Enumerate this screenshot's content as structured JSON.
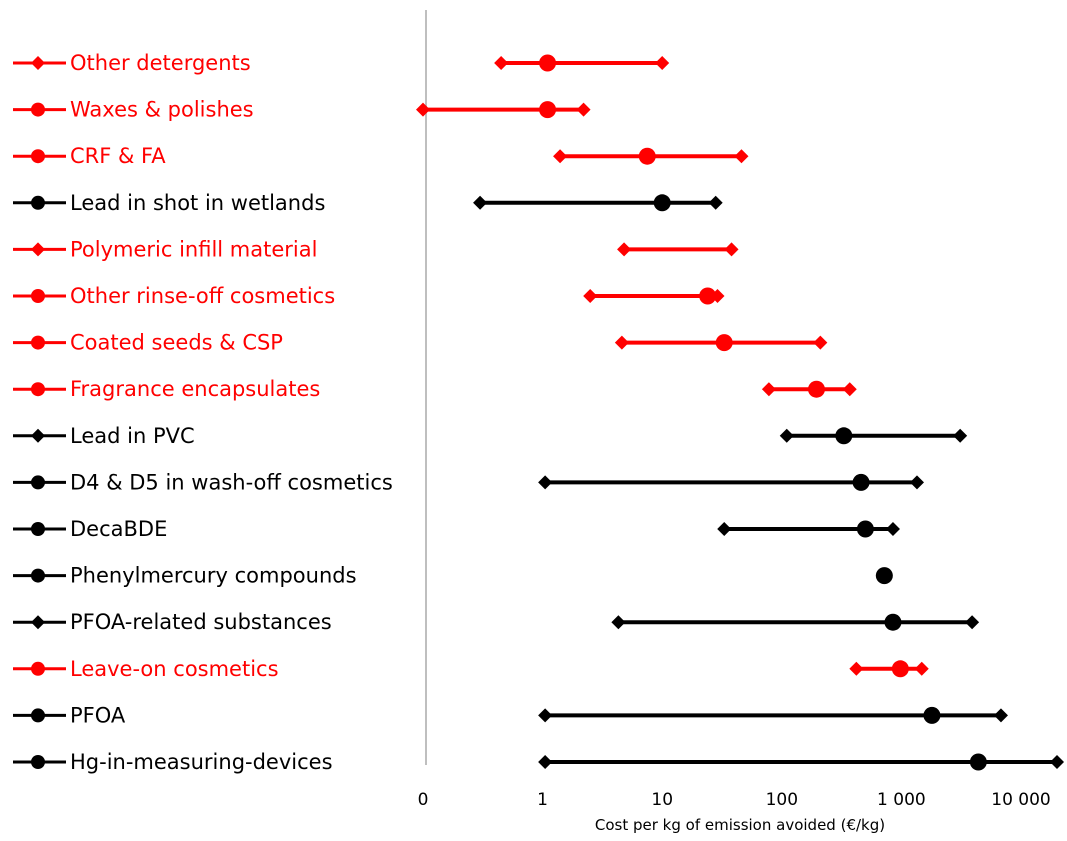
{
  "chart_data": {
    "type": "range-dot",
    "xlabel": "Cost per kg of emission avoided (€/kg)",
    "xscale": "log",
    "xlim": [
      0.1,
      20000
    ],
    "x_ticks": [
      {
        "value": 0.1,
        "label": "0"
      },
      {
        "value": 1,
        "label": "1"
      },
      {
        "value": 10,
        "label": "10"
      },
      {
        "value": 100,
        "label": "100"
      },
      {
        "value": 1000,
        "label": "1 000"
      },
      {
        "value": 10000,
        "label": "10 000"
      }
    ],
    "colors": {
      "highlight": "#ff0000",
      "default": "#000000",
      "axis": "#bfbfbf"
    },
    "rows": [
      {
        "label": "Other detergents",
        "color": "#ff0000",
        "legend_marker": "diamond",
        "low": 0.45,
        "central": 1.1,
        "high": 10
      },
      {
        "label": "Waxes & polishes",
        "color": "#ff0000",
        "legend_marker": "circle",
        "low": 0.1,
        "central": 1.1,
        "high": 2.2
      },
      {
        "label": "CRF & FA",
        "color": "#ff0000",
        "legend_marker": "circle",
        "low": 1.4,
        "central": 7.5,
        "high": 46
      },
      {
        "label": "Lead in shot in wetlands",
        "color": "#000000",
        "legend_marker": "circle",
        "low": 0.3,
        "central": 10,
        "high": 28
      },
      {
        "label": "Polymeric infill material",
        "color": "#ff0000",
        "legend_marker": "diamond",
        "low": 4.8,
        "central": null,
        "high": 38
      },
      {
        "label": "Other rinse-off cosmetics",
        "color": "#ff0000",
        "legend_marker": "circle",
        "low": 2.5,
        "central": 24,
        "high": 29
      },
      {
        "label": "Coated seeds & CSP",
        "color": "#ff0000",
        "legend_marker": "circle",
        "low": 4.6,
        "central": 33,
        "high": 210
      },
      {
        "label": "Fragrance encapsulates",
        "color": "#ff0000",
        "legend_marker": "circle",
        "low": 78,
        "central": 195,
        "high": 370
      },
      {
        "label": "Lead in PVC",
        "color": "#000000",
        "legend_marker": "diamond",
        "low": 110,
        "central": 330,
        "high": 3100
      },
      {
        "label": "D4 & D5 in wash-off cosmetics",
        "color": "#000000",
        "legend_marker": "circle",
        "low": 1.05,
        "central": 460,
        "high": 1350
      },
      {
        "label": "DecaBDE",
        "color": "#000000",
        "legend_marker": "circle",
        "low": 33,
        "central": 500,
        "high": 850
      },
      {
        "label": "Phenylmercury compounds",
        "color": "#000000",
        "legend_marker": "circle",
        "low": null,
        "central": 720,
        "high": null
      },
      {
        "label": "PFOA-related substances",
        "color": "#000000",
        "legend_marker": "diamond",
        "low": 4.3,
        "central": 850,
        "high": 3900
      },
      {
        "label": "Leave-on cosmetics",
        "color": "#ff0000",
        "legend_marker": "circle",
        "low": 420,
        "central": 980,
        "high": 1480
      },
      {
        "label": "PFOA",
        "color": "#000000",
        "legend_marker": "circle",
        "low": 1.05,
        "central": 1800,
        "high": 6800
      },
      {
        "label": "Hg-in-measuring-devices",
        "color": "#000000",
        "legend_marker": "circle",
        "low": 1.05,
        "central": 4400,
        "high": 20000
      }
    ]
  }
}
